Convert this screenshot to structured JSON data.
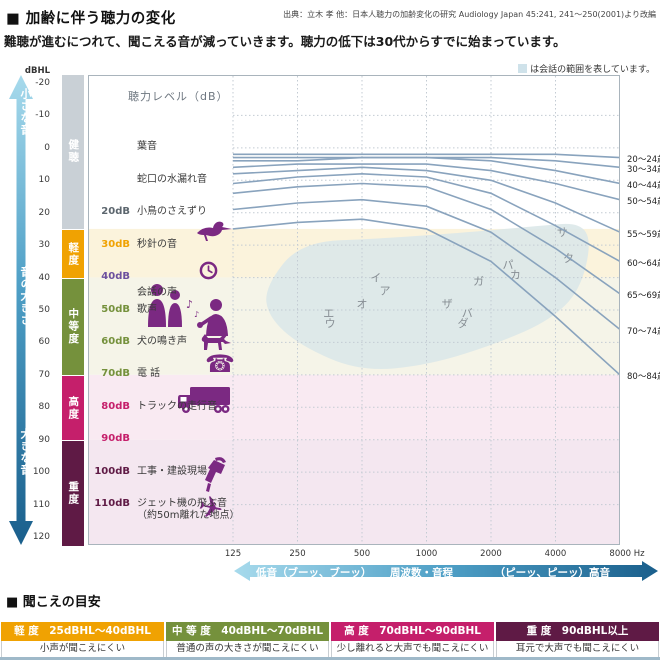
{
  "header": {
    "title": "■ 加齢に伴う聴力の変化",
    "source": "出典：立木 孝 他：日本人聴力の加齢変化の研究 Audiology Japan 45:241, 241～250(2001)より改編",
    "subtitle": "難聴が進むにつれて、聞こえる音が減っていきます。聴力の低下は30代からすでに始まっています。"
  },
  "legend": {
    "note": "は会話の範囲を表しています。",
    "swatch_color": "#CFE2EA"
  },
  "volume_arrow": {
    "top": "小さな音",
    "middle": "音の大きさ",
    "bottom": "大きな音"
  },
  "y_axis": {
    "unit": "dBHL",
    "ticks": [
      -20,
      -10,
      0,
      10,
      20,
      30,
      40,
      50,
      60,
      70,
      80,
      90,
      100,
      110,
      120
    ]
  },
  "zones": [
    {
      "label": "健聴",
      "from_db": -20,
      "to_db": 25,
      "bar_color": "#C9D0D6",
      "band_color": "#FFFFFF"
    },
    {
      "label": "軽度",
      "from_db": 25,
      "to_db": 40,
      "bar_color": "#F0A202",
      "band_color": "#FBF3DC"
    },
    {
      "label": "中等度",
      "from_db": 40,
      "to_db": 70,
      "bar_color": "#75913C",
      "band_color": "#F5F4E8"
    },
    {
      "label": "高度",
      "from_db": 70,
      "to_db": 90,
      "bar_color": "#C51F6B",
      "band_color": "#F9EAF2"
    },
    {
      "label": "重度",
      "from_db": 90,
      "to_db": 120,
      "bar_color": "#5F1A45",
      "band_color": "#F4E7F0"
    }
  ],
  "hearing_examples": {
    "header": "聴力レベル（dB）",
    "rows": [
      {
        "at_db": 0,
        "db_label": "",
        "db_color": "",
        "text": "葉音"
      },
      {
        "at_db": 10,
        "db_label": "",
        "db_color": "",
        "text": "蛇口の水漏れ音"
      },
      {
        "at_db": 20,
        "db_label": "20dB",
        "db_color": "#5C666E",
        "text": "小鳥のさえずり",
        "icon": "bird"
      },
      {
        "at_db": 30,
        "db_label": "30dB",
        "db_color": "#F0A202",
        "text": "秒針の音",
        "icon": "clock"
      },
      {
        "at_db": 40,
        "db_label": "40dB",
        "db_color": "#6C4F9E",
        "text": ""
      },
      {
        "at_db": 45,
        "db_label": "",
        "db_color": "",
        "text": "会話の声",
        "icon": "people"
      },
      {
        "at_db": 50,
        "db_label": "50dB",
        "db_color": "#75913C",
        "text": "歌声",
        "icon": "singer"
      },
      {
        "at_db": 60,
        "db_label": "60dB",
        "db_color": "#75913C",
        "text": "犬の鳴き声",
        "icon": "dog"
      },
      {
        "at_db": 70,
        "db_label": "70dB",
        "db_color": "#75913C",
        "text": "電 話",
        "icon": "phone"
      },
      {
        "at_db": 80,
        "db_label": "80dB",
        "db_color": "#C51F6B",
        "text": "トラックの走行音",
        "icon": "truck"
      },
      {
        "at_db": 90,
        "db_label": "90dB",
        "db_color": "#C51F6B",
        "text": ""
      },
      {
        "at_db": 100,
        "db_label": "100dB",
        "db_color": "#5F1A45",
        "text": "工事・建設現場",
        "icon": "drill"
      },
      {
        "at_db": 110,
        "db_label": "110dB",
        "db_color": "#5F1A45",
        "text": "ジェット機の飛ぶ音",
        "text2": "（約50m離れた地点）",
        "icon": "plane"
      }
    ]
  },
  "chart_data": {
    "type": "line",
    "title": "聴力レベル（dB）",
    "xlabel": "周波数・音程 (Hz)",
    "ylabel": "聴力レベル (dBHL)",
    "x_scale": "log2",
    "x": [
      125,
      250,
      500,
      1000,
      2000,
      4000,
      8000
    ],
    "x_tick_labels": [
      "125",
      "250",
      "500",
      "1000",
      "2000",
      "4000",
      "8000 Hz"
    ],
    "ylim": [
      -20,
      120
    ],
    "y_inverted": true,
    "grid": true,
    "legend_position": "right",
    "series": [
      {
        "name": "20～24歳",
        "values": [
          2,
          2,
          2,
          2,
          2,
          2,
          3
        ]
      },
      {
        "name": "30～34歳",
        "values": [
          3,
          3,
          3,
          3,
          3,
          4,
          6
        ]
      },
      {
        "name": "40～44歳",
        "values": [
          4,
          4,
          3,
          3,
          4,
          7,
          11
        ]
      },
      {
        "name": "50～54歳",
        "values": [
          6,
          5,
          5,
          5,
          7,
          11,
          16
        ]
      },
      {
        "name": "55～59歳",
        "values": [
          8,
          7,
          6,
          7,
          10,
          17,
          26
        ]
      },
      {
        "name": "60～64歳",
        "values": [
          11,
          9,
          8,
          9,
          14,
          24,
          35
        ]
      },
      {
        "name": "65～69歳",
        "values": [
          14,
          12,
          11,
          12,
          19,
          31,
          45
        ]
      },
      {
        "name": "70～74歳",
        "values": [
          19,
          17,
          16,
          18,
          26,
          40,
          56
        ]
      },
      {
        "name": "80～84歳",
        "values": [
          25,
          23,
          22,
          25,
          35,
          52,
          70
        ]
      }
    ],
    "speech_range": {
      "note": "は会話の範囲を表しています。",
      "fill": "#DCE8E9",
      "outline_hz_db": [
        [
          176,
          43
        ],
        [
          257,
          29
        ],
        [
          606,
          28
        ],
        [
          1600,
          26
        ],
        [
          3400,
          24
        ],
        [
          5200,
          23
        ],
        [
          5900,
          29
        ],
        [
          5200,
          44
        ],
        [
          3800,
          53
        ],
        [
          2200,
          60
        ],
        [
          1030,
          67
        ],
        [
          490,
          69
        ],
        [
          257,
          61
        ],
        [
          182,
          52
        ]
      ]
    },
    "speech_sounds": [
      {
        "char": "イ",
        "hz": 580,
        "db": 40
      },
      {
        "char": "ア",
        "hz": 640,
        "db": 44
      },
      {
        "char": "オ",
        "hz": 500,
        "db": 48
      },
      {
        "char": "エ",
        "hz": 350,
        "db": 51
      },
      {
        "char": "ウ",
        "hz": 355,
        "db": 54
      },
      {
        "char": "サ",
        "hz": 4300,
        "db": 26
      },
      {
        "char": "タ",
        "hz": 4600,
        "db": 34
      },
      {
        "char": "パ",
        "hz": 2400,
        "db": 36
      },
      {
        "char": "カ",
        "hz": 2600,
        "db": 39
      },
      {
        "char": "ガ",
        "hz": 1750,
        "db": 41
      },
      {
        "char": "ザ",
        "hz": 1250,
        "db": 48
      },
      {
        "char": "バ",
        "hz": 1550,
        "db": 51
      },
      {
        "char": "ダ",
        "hz": 1480,
        "db": 54
      }
    ]
  },
  "frequency_arrow": {
    "left": "低音（ブーッ、ブーッ）",
    "center": "周波数・音程",
    "right": "（ピーッ、ピーッ）高音"
  },
  "guide": {
    "title": "■ 聞こえの目安",
    "grades": [
      {
        "name": "軽 度",
        "range": "25dBHL～40dBHL",
        "color": "#F0A202",
        "desc": "小声が聞こえにくい"
      },
      {
        "name": "中 等 度",
        "range": "40dBHL～70dBHL",
        "color": "#75913C",
        "desc": "普通の声の大きさが聞こえにくい"
      },
      {
        "name": "高 度",
        "range": "70dBHL～90dBHL",
        "color": "#C51F6B",
        "desc": "少し離れると大声でも聞こえにくい"
      },
      {
        "name": "重 度",
        "range": "90dBHL以上",
        "color": "#5F1A45",
        "desc": "耳元で大声でも聞こえにくい"
      }
    ]
  },
  "theme": {
    "icon_color": "#7B2982",
    "curve_color": "#89A3BD",
    "grid_color": "#C3CBD3",
    "katakana_color": "#878E94",
    "border_color": "#A9B4BC",
    "arrow_gradient": [
      "#A7DAEC",
      "#4E9FC6",
      "#1A5F8C"
    ],
    "table_bottom_border": "#9FB9C9"
  }
}
